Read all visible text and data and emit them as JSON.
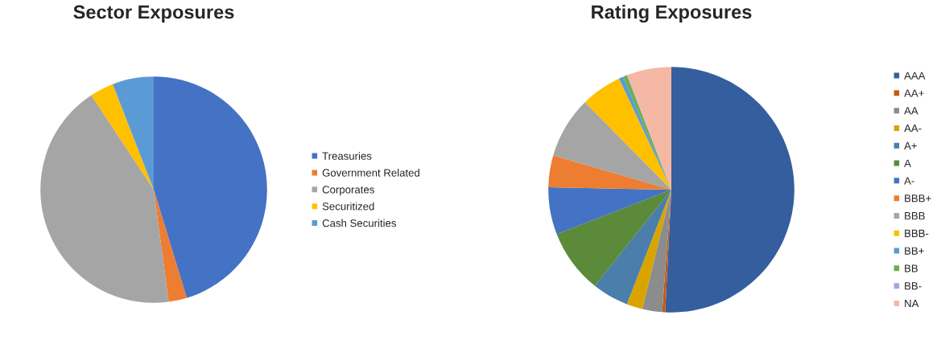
{
  "chart_data": [
    {
      "type": "pie",
      "title": "Sector Exposures",
      "legend": "right",
      "categories": [
        "Treasuries",
        "Government Related",
        "Corporates",
        "Securitized",
        "Cash Securities"
      ],
      "values": [
        45.3,
        2.6,
        42.8,
        3.4,
        5.9
      ],
      "colors": [
        "#4472c4",
        "#ed7d31",
        "#a5a5a5",
        "#ffc000",
        "#5b9bd5"
      ]
    },
    {
      "type": "pie",
      "title": "Rating Exposures",
      "legend": "right",
      "categories": [
        "AAA",
        "AA+",
        "AA",
        "AA-",
        "A+",
        "A",
        "A-",
        "BBB+",
        "BBB",
        "BBB-",
        "BB+",
        "BB",
        "BB-",
        "NA"
      ],
      "values": [
        50.8,
        0.4,
        2.6,
        2.1,
        4.8,
        8.4,
        6.2,
        4.2,
        8.1,
        5.4,
        0.6,
        0.5,
        0.1,
        5.8
      ],
      "colors": [
        "#355e9f",
        "#c55a11",
        "#8c8c8c",
        "#d9a400",
        "#4a7eab",
        "#5a8a3a",
        "#4472c4",
        "#ed7d31",
        "#a5a5a5",
        "#ffc000",
        "#5b9bd5",
        "#70ad47",
        "#9dabd9",
        "#f4b8a4"
      ]
    }
  ]
}
